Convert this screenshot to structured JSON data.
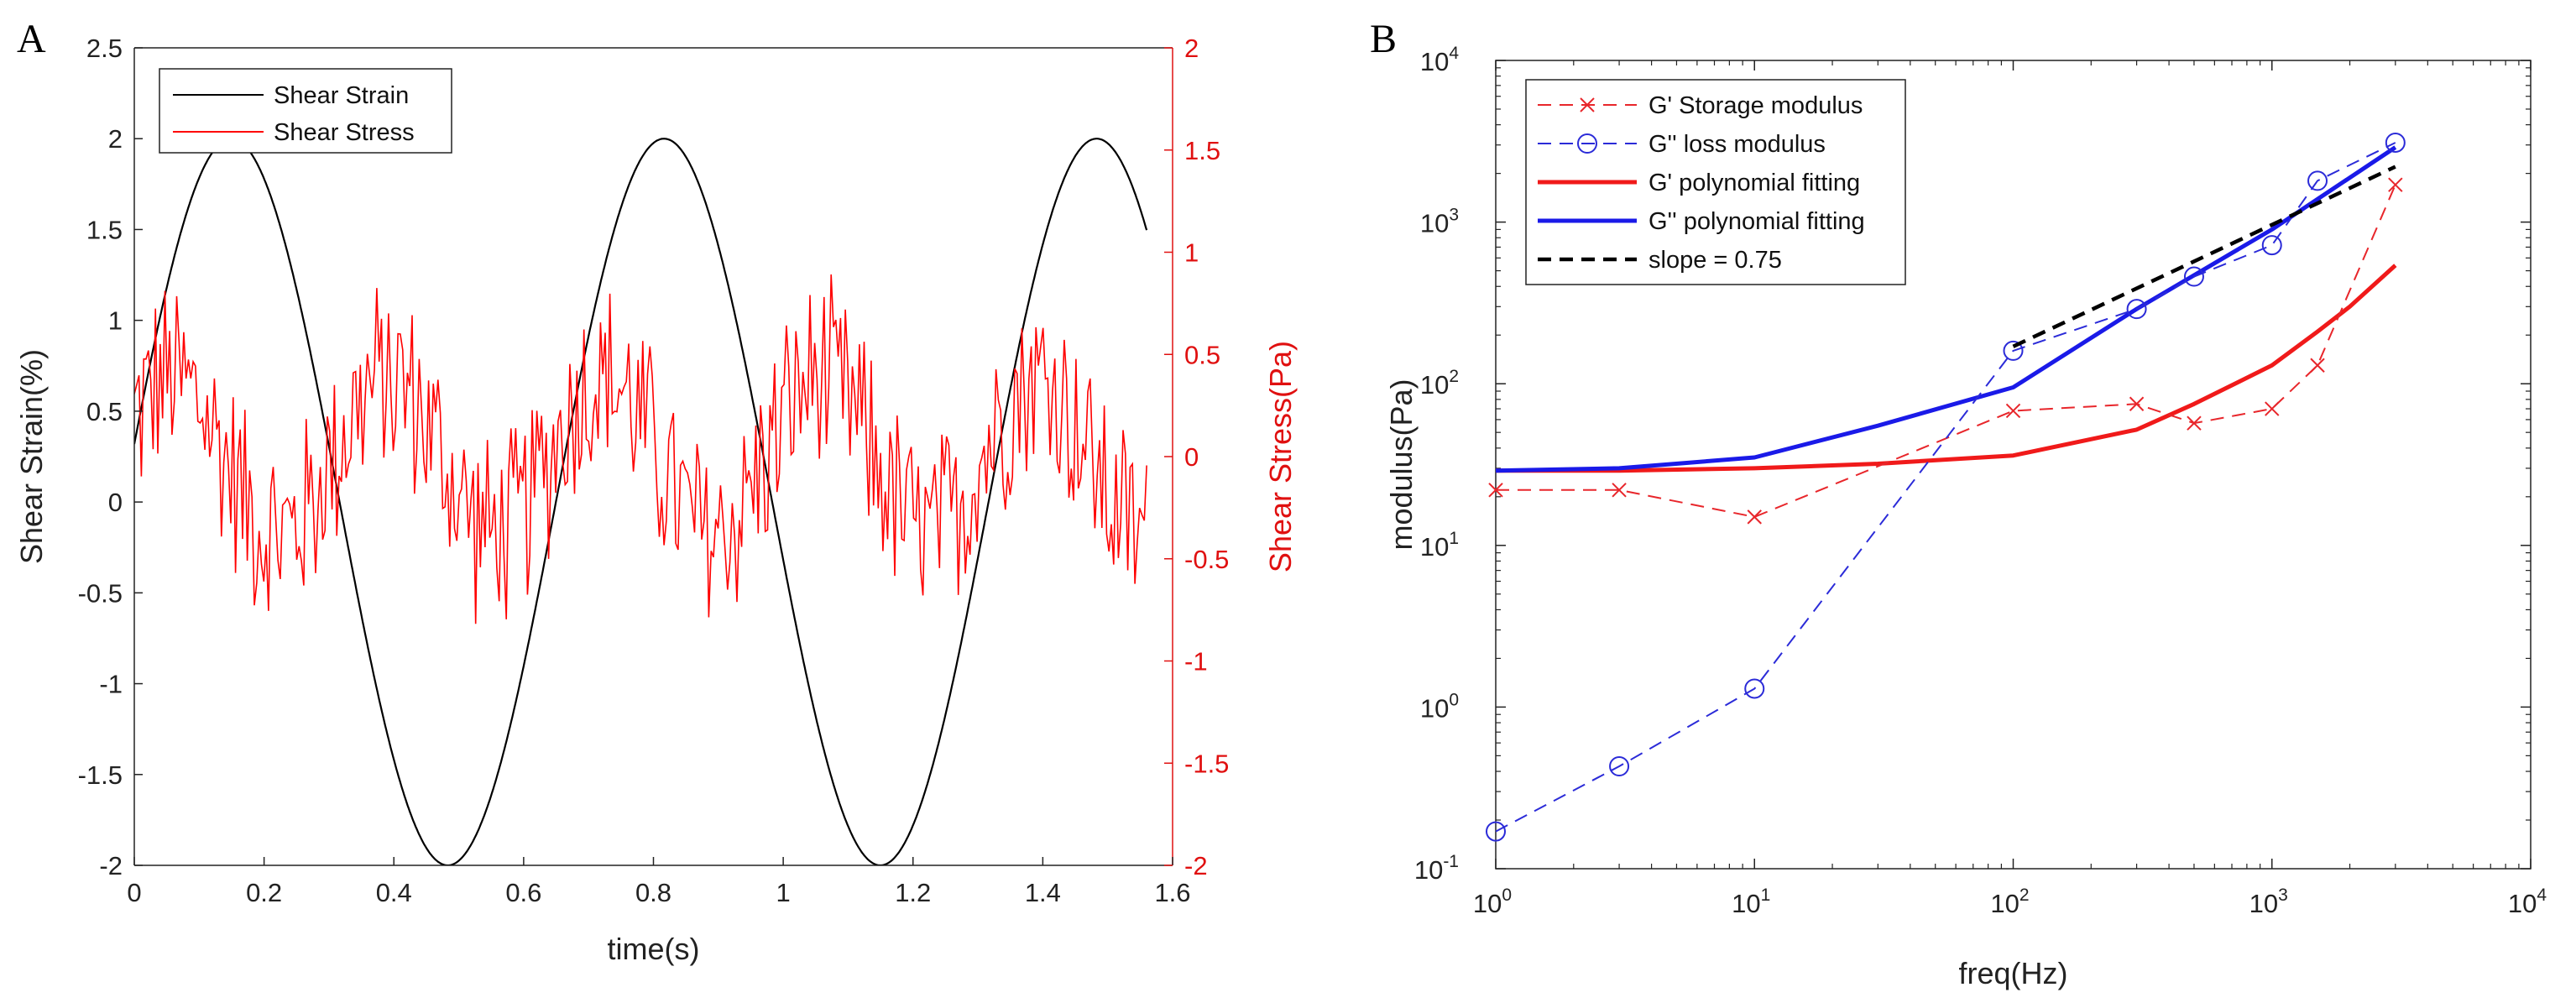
{
  "figure": {
    "panel_a_label": "A",
    "panel_b_label": "B"
  },
  "colors": {
    "strain": "#000000",
    "stress": "#ff0000",
    "storage": "#e8262b",
    "loss": "#2b2bd8",
    "fit_storage": "#f01a1a",
    "fit_loss": "#1a1ae8",
    "slope": "#000000"
  },
  "chart_data": [
    {
      "type": "line",
      "panel": "A",
      "title": "",
      "xlabel": "time(s)",
      "ylabel": "Shear Strain(%)",
      "y2label": "Shear Stress(Pa)",
      "xlim": [
        0,
        1.6
      ],
      "ylim": [
        -2,
        2.5
      ],
      "y2lim": [
        -2,
        2
      ],
      "xticks": [
        "0",
        "0.2",
        "0.4",
        "0.6",
        "0.8",
        "1",
        "1.2",
        "1.4",
        "1.6"
      ],
      "yticks": [
        "-2",
        "-1.5",
        "-1",
        "-0.5",
        "0",
        "0.5",
        "1",
        "1.5",
        "2",
        "2.5"
      ],
      "y2ticks": [
        "-2",
        "-1.5",
        "-1",
        "-0.5",
        "0",
        "0.5",
        "1",
        "1.5",
        "2"
      ],
      "legend_position": "top-left",
      "series": [
        {
          "name": "Shear Strain",
          "axis": "left",
          "model": "sine",
          "amplitude": 2,
          "frequency_hz": 1.5,
          "phase_rad": 0.16,
          "t_end": 1.56
        },
        {
          "name": "Shear Stress",
          "axis": "right",
          "model": "noisy-sine",
          "amplitude": 0.38,
          "frequency_hz": 3.0,
          "noise_amplitude": 0.55,
          "samples": 430,
          "t_end": 1.56
        }
      ]
    },
    {
      "type": "line",
      "panel": "B",
      "title": "",
      "xlabel": "freq(Hz)",
      "ylabel": "modulus(Pa)",
      "xscale": "log",
      "yscale": "log",
      "xlim": [
        1,
        10000
      ],
      "ylim": [
        0.1,
        10000
      ],
      "xtick_exponents": [
        "0",
        "1",
        "2",
        "3",
        "4"
      ],
      "ytick_exponents": [
        "-1",
        "0",
        "1",
        "2",
        "3",
        "4"
      ],
      "tick_base": "10",
      "legend_position": "top-left",
      "series": [
        {
          "name": "G' Storage modulus",
          "style": "dashed",
          "marker": "x",
          "x": [
            1,
            3,
            10,
            100,
            300,
            500,
            1000,
            1500,
            3000
          ],
          "y": [
            22,
            22,
            15,
            68,
            75,
            57,
            70,
            130,
            1700
          ]
        },
        {
          "name": "G'' loss modulus",
          "style": "dashed",
          "marker": "o",
          "x": [
            1,
            3,
            10,
            100,
            300,
            500,
            1000,
            1500,
            3000
          ],
          "y": [
            0.17,
            0.43,
            1.3,
            160,
            290,
            460,
            720,
            1800,
            3100
          ]
        },
        {
          "name": "G' polynomial fitting",
          "style": "solid",
          "x": [
            1,
            3,
            10,
            30,
            100,
            300,
            500,
            1000,
            1500,
            2000,
            3000
          ],
          "y": [
            29,
            29,
            30,
            32,
            36,
            52,
            75,
            130,
            210,
            300,
            540
          ]
        },
        {
          "name": "G'' polynomial fitting",
          "style": "solid",
          "x": [
            1,
            3,
            10,
            30,
            100,
            300,
            1000,
            3000
          ],
          "y": [
            29,
            30,
            35,
            55,
            95,
            290,
            900,
            2900
          ]
        },
        {
          "name": "slope = 0.75",
          "style": "dashed",
          "x": [
            100,
            3000
          ],
          "y": [
            170,
            2200
          ]
        }
      ]
    }
  ]
}
